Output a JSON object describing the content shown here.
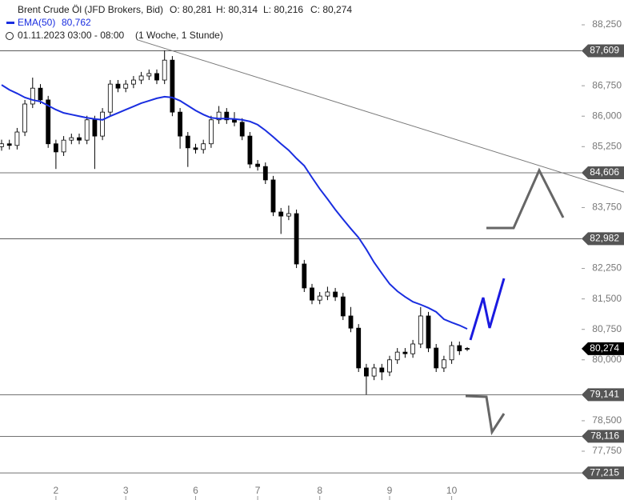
{
  "chart_data": {
    "type": "candlestick",
    "header": {
      "symbol": "Brent Crude Öl (JFD Brokers, Bid)",
      "ohlc": [
        "O: 80,281",
        "H: 80,314",
        "L: 80,216",
        "C: 80,274"
      ],
      "ema_name": "EMA(50)",
      "ema_value": "80,762",
      "date": "01.11.2023 03:00 - 08:00",
      "period": "(1 Woche, 1 Stunde)"
    },
    "categories": [
      null,
      null,
      null,
      null,
      null,
      null,
      null,
      "2",
      null,
      null,
      null,
      null,
      null,
      null,
      null,
      null,
      "3",
      null,
      null,
      null,
      null,
      null,
      null,
      null,
      null,
      "6",
      null,
      null,
      null,
      null,
      null,
      null,
      null,
      "7",
      null,
      null,
      null,
      null,
      null,
      null,
      null,
      "8",
      null,
      null,
      null,
      null,
      null,
      null,
      null,
      null,
      "9",
      null,
      null,
      null,
      null,
      null,
      null,
      null,
      "10",
      null,
      null
    ],
    "open": [
      85.25,
      85.32,
      85.28,
      85.61,
      86.3,
      86.69,
      86.4,
      85.32,
      85.12,
      85.41,
      85.47,
      85.41,
      85.91,
      85.51,
      86.1,
      86.79,
      86.69,
      86.79,
      86.89,
      86.99,
      87.05,
      86.89,
      87.38,
      86.1,
      85.51,
      85.22,
      85.18,
      85.32,
      85.91,
      86.1,
      85.91,
      85.85,
      85.51,
      84.82,
      84.76,
      84.43,
      83.64,
      83.54,
      83.6,
      82.36,
      81.77,
      81.47,
      81.57,
      81.67,
      81.55,
      81.08,
      80.78,
      79.8,
      79.6,
      79.8,
      79.7,
      80.0,
      80.19,
      80.15,
      80.39,
      81.08,
      80.29,
      79.8,
      80.0,
      80.35,
      80.281
    ],
    "high": [
      85.42,
      85.42,
      85.71,
      86.4,
      86.95,
      86.79,
      86.5,
      85.42,
      85.51,
      85.57,
      85.57,
      86.01,
      86.01,
      86.2,
      86.89,
      86.89,
      86.89,
      86.99,
      87.09,
      87.15,
      87.15,
      87.62,
      87.48,
      86.2,
      85.61,
      85.32,
      85.42,
      86.01,
      86.25,
      86.2,
      86.1,
      85.95,
      85.61,
      84.92,
      84.86,
      84.53,
      83.74,
      83.8,
      83.7,
      82.46,
      81.87,
      81.67,
      81.8,
      81.77,
      81.65,
      81.3,
      80.88,
      79.9,
      79.9,
      79.9,
      80.1,
      80.29,
      80.29,
      80.49,
      81.3,
      81.18,
      80.39,
      80.1,
      80.45,
      80.45,
      80.314
    ],
    "low": [
      85.15,
      85.18,
      85.18,
      85.51,
      86.2,
      86.3,
      85.22,
      84.7,
      85.02,
      85.31,
      85.31,
      85.31,
      84.7,
      85.41,
      86.0,
      86.59,
      86.59,
      86.69,
      86.79,
      86.89,
      86.79,
      86.79,
      86.0,
      85.2,
      84.75,
      85.08,
      85.08,
      85.22,
      85.81,
      85.81,
      85.75,
      85.41,
      84.72,
      84.66,
      84.33,
      83.54,
      83.1,
      83.44,
      82.26,
      81.67,
      81.37,
      81.37,
      81.47,
      81.45,
      80.98,
      80.68,
      79.7,
      79.14,
      79.5,
      79.5,
      79.6,
      79.9,
      80.05,
      80.05,
      80.29,
      80.19,
      79.7,
      79.7,
      79.9,
      80.12,
      80.216
    ],
    "close": [
      85.32,
      85.28,
      85.61,
      86.3,
      86.69,
      86.4,
      85.32,
      85.12,
      85.41,
      85.47,
      85.41,
      85.91,
      85.51,
      86.1,
      86.79,
      86.69,
      86.79,
      86.89,
      86.99,
      87.05,
      86.89,
      87.38,
      86.1,
      85.51,
      85.22,
      85.18,
      85.32,
      85.91,
      86.1,
      85.91,
      85.85,
      85.51,
      84.82,
      84.76,
      84.43,
      83.64,
      83.54,
      83.6,
      82.36,
      81.77,
      81.47,
      81.57,
      81.67,
      81.55,
      81.08,
      80.78,
      79.8,
      79.6,
      79.8,
      79.7,
      80.0,
      80.19,
      80.15,
      80.39,
      81.08,
      80.29,
      79.8,
      80.0,
      80.35,
      80.22,
      80.274
    ],
    "ema": {
      "color": "#1a2ee0",
      "values": [
        86.77,
        86.65,
        86.56,
        86.46,
        86.4,
        86.36,
        86.26,
        86.16,
        86.08,
        86.04,
        86.0,
        85.96,
        85.93,
        85.91,
        86.0,
        86.08,
        86.16,
        86.24,
        86.32,
        86.38,
        86.44,
        86.48,
        86.46,
        86.38,
        86.26,
        86.14,
        86.04,
        85.96,
        85.94,
        85.94,
        85.93,
        85.91,
        85.87,
        85.79,
        85.65,
        85.49,
        85.32,
        85.16,
        84.96,
        84.78,
        84.49,
        84.21,
        83.96,
        83.7,
        83.46,
        83.23,
        83.01,
        82.72,
        82.4,
        82.13,
        81.87,
        81.69,
        81.55,
        81.43,
        81.36,
        81.28,
        81.18,
        81.0,
        80.92,
        80.85,
        80.762
      ]
    },
    "trendline": {
      "x": [
        17.5,
        80.2
      ],
      "y": [
        87.88,
        84.13
      ]
    },
    "levels": [
      {
        "value": 87.609,
        "label": "87,609"
      },
      {
        "value": 84.606,
        "label": "84,606"
      },
      {
        "value": 82.982,
        "label": "82,982"
      },
      {
        "value": 79.141,
        "label": "79,141"
      },
      {
        "value": 78.116,
        "label": "78,116"
      },
      {
        "value": 77.215,
        "label": "77,215"
      }
    ],
    "last_price": {
      "value": 80.274,
      "label": "80,274"
    },
    "ylim": [
      76.548,
      88.861
    ],
    "yticks": [
      {
        "value": 88.25,
        "label": "88,250"
      },
      {
        "value": 86.75,
        "label": "86,750"
      },
      {
        "value": 86.0,
        "label": "86,000"
      },
      {
        "value": 85.25,
        "label": "85,250"
      },
      {
        "value": 83.75,
        "label": "83,750"
      },
      {
        "value": 82.25,
        "label": "82,250"
      },
      {
        "value": 81.5,
        "label": "81,500"
      },
      {
        "value": 80.75,
        "label": "80,750"
      },
      {
        "value": 80.0,
        "label": "80,000"
      },
      {
        "value": 78.5,
        "label": "78,500"
      },
      {
        "value": 77.75,
        "label": "77,750"
      }
    ]
  }
}
